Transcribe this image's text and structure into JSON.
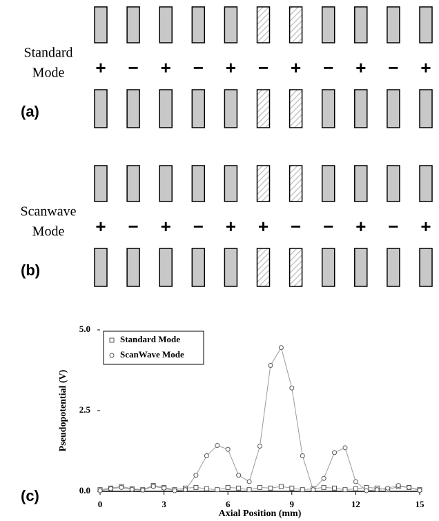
{
  "panels": [
    {
      "label": "(a)",
      "mode": [
        "Standard",
        "Mode"
      ],
      "signs": [
        "+",
        "−",
        "+",
        "−",
        "+",
        "−",
        "+",
        "−",
        "+",
        "−",
        "+"
      ]
    },
    {
      "label": "(b)",
      "mode": [
        "Scanwave",
        "Mode"
      ],
      "signs": [
        "+",
        "−",
        "+",
        "−",
        "+",
        "+",
        "−",
        "−",
        "+",
        "−",
        "+"
      ]
    }
  ],
  "chart_label": "(c)",
  "chart_data": {
    "type": "line",
    "xlabel": "Axial Position (mm)",
    "ylabel": "Pseudopotential (V)",
    "x": [
      0,
      0.5,
      1,
      1.5,
      2,
      2.5,
      3,
      3.5,
      4,
      4.5,
      5,
      5.5,
      6,
      6.5,
      7,
      7.5,
      8,
      8.5,
      9,
      9.5,
      10,
      10.5,
      11,
      11.5,
      12,
      12.5,
      13,
      13.5,
      14,
      14.5,
      15
    ],
    "series": [
      {
        "name": "Standard Mode",
        "marker": "square",
        "color": "#555555",
        "values": [
          0.05,
          0.1,
          0.15,
          0.08,
          0.05,
          0.18,
          0.12,
          0.05,
          0.1,
          0.12,
          0.08,
          0.05,
          0.12,
          0.1,
          0.05,
          0.12,
          0.1,
          0.15,
          0.1,
          0.05,
          0.08,
          0.12,
          0.1,
          0.05,
          0.08,
          0.12,
          0.1,
          0.05,
          0.15,
          0.12,
          0.05
        ]
      },
      {
        "name": "ScanWave Mode",
        "marker": "circle",
        "color": "#555555",
        "values": [
          0.02,
          0.08,
          0.12,
          0.06,
          0.04,
          0.15,
          0.1,
          0.02,
          0.05,
          0.5,
          1.1,
          1.42,
          1.3,
          0.5,
          0.3,
          1.4,
          3.9,
          4.45,
          3.2,
          1.1,
          0.05,
          0.4,
          1.2,
          1.35,
          0.3,
          0.02,
          0.05,
          0.1,
          0.18,
          0.12,
          0.03
        ]
      }
    ],
    "xlim": [
      0,
      15
    ],
    "xticks": [
      0,
      3,
      6,
      9,
      12,
      15
    ],
    "ylim": [
      0,
      5
    ],
    "yticks": [
      {
        "value": 0,
        "label": "0.0"
      },
      {
        "value": 2.5,
        "label": "2.5"
      },
      {
        "value": 5,
        "label": "5.0"
      }
    ],
    "legend": "upper left",
    "grid": false
  }
}
